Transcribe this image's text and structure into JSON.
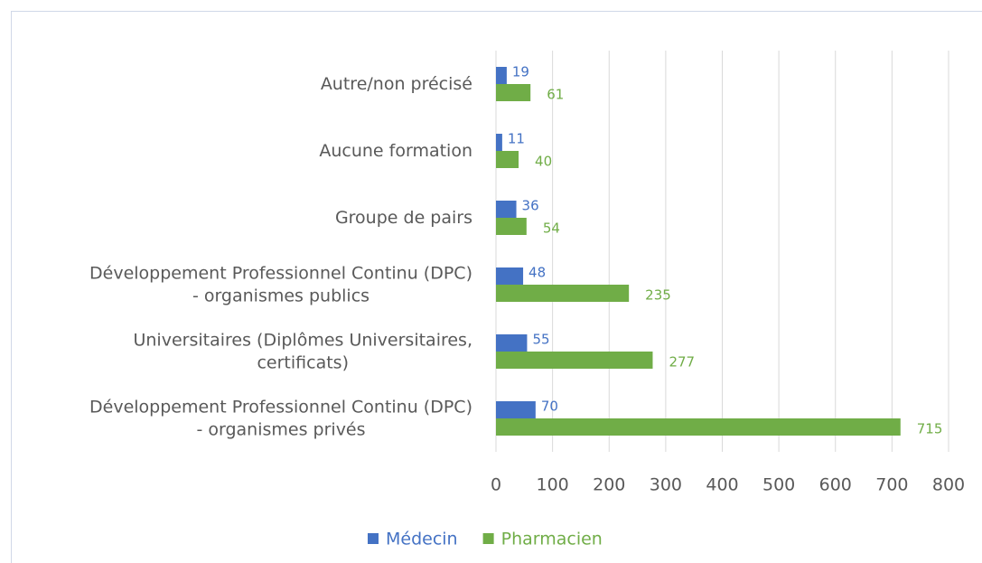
{
  "chart_data": {
    "type": "bar",
    "orientation": "horizontal",
    "categories": [
      "Autre/non précisé",
      "Aucune formation",
      "Groupe de pairs",
      "Développement Professionnel Continu (DPC)\n- organismes publics",
      "Universitaires (Diplômes Universitaires,\ncertificats)",
      "Développement Professionnel Continu (DPC)\n- organismes privés"
    ],
    "series": [
      {
        "name": "Médecin",
        "color": "#4472c4",
        "values": [
          19,
          11,
          36,
          48,
          55,
          70
        ]
      },
      {
        "name": "Pharmacien",
        "color": "#70ad47",
        "values": [
          61,
          40,
          54,
          235,
          277,
          715
        ]
      }
    ],
    "xlim": [
      0,
      800
    ],
    "xticks": [
      0,
      100,
      200,
      300,
      400,
      500,
      600,
      700,
      800
    ],
    "grid": true,
    "legend": "bottom"
  }
}
